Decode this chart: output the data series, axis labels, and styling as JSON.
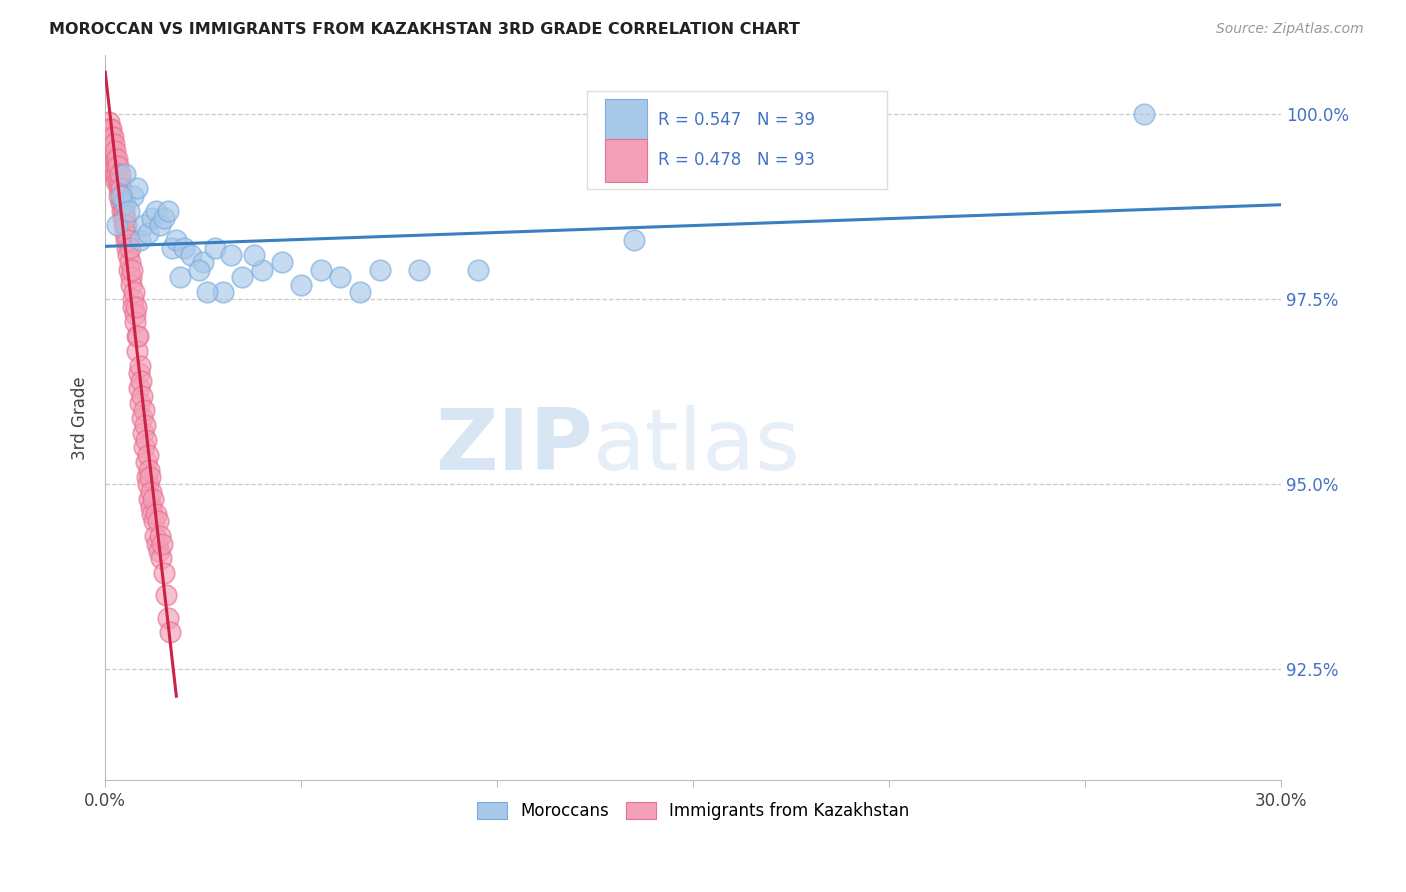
{
  "title": "MOROCCAN VS IMMIGRANTS FROM KAZAKHSTAN 3RD GRADE CORRELATION CHART",
  "source": "Source: ZipAtlas.com",
  "ylabel": "3rd Grade",
  "yticks": [
    100.0,
    97.5,
    95.0,
    92.5
  ],
  "ytick_labels": [
    "100.0%",
    "97.5%",
    "95.0%",
    "92.5%"
  ],
  "xmin": 0.0,
  "xmax": 30.0,
  "ymin": 91.0,
  "ymax": 100.8,
  "blue_color": "#a8c8e8",
  "pink_color": "#f4a0b8",
  "blue_edge_color": "#7aade0",
  "pink_edge_color": "#e87090",
  "blue_line_color": "#3a7fc1",
  "pink_line_color": "#cc2244",
  "legend_label_moroccans": "Moroccans",
  "legend_label_immigrants": "Immigrants from Kazakhstan",
  "watermark_zip": "ZIP",
  "watermark_atlas": "atlas",
  "blue_R": "0.547",
  "blue_N": "39",
  "pink_R": "0.478",
  "pink_N": "93",
  "blue_scatter_x": [
    0.3,
    0.5,
    0.5,
    0.7,
    0.8,
    0.9,
    1.0,
    1.1,
    1.2,
    1.3,
    1.4,
    1.5,
    1.6,
    1.7,
    1.8,
    2.0,
    2.2,
    2.5,
    2.8,
    3.0,
    3.2,
    3.5,
    4.0,
    4.5,
    5.0,
    5.5,
    6.0,
    6.5,
    7.0,
    8.0,
    9.5,
    13.5,
    26.5,
    0.4,
    0.6,
    1.9,
    2.4,
    2.6,
    3.8
  ],
  "blue_scatter_y": [
    98.5,
    99.2,
    98.8,
    98.9,
    99.0,
    98.3,
    98.5,
    98.4,
    98.6,
    98.7,
    98.5,
    98.6,
    98.7,
    98.2,
    98.3,
    98.2,
    98.1,
    98.0,
    98.2,
    97.6,
    98.1,
    97.8,
    97.9,
    98.0,
    97.7,
    97.9,
    97.8,
    97.6,
    97.9,
    97.9,
    97.9,
    98.3,
    100.0,
    98.9,
    98.7,
    97.8,
    97.9,
    97.6,
    98.1
  ],
  "pink_scatter_x": [
    0.05,
    0.08,
    0.1,
    0.1,
    0.12,
    0.12,
    0.14,
    0.15,
    0.15,
    0.17,
    0.18,
    0.2,
    0.2,
    0.22,
    0.24,
    0.25,
    0.25,
    0.27,
    0.28,
    0.3,
    0.3,
    0.32,
    0.33,
    0.35,
    0.35,
    0.37,
    0.38,
    0.4,
    0.4,
    0.42,
    0.43,
    0.45,
    0.45,
    0.47,
    0.48,
    0.5,
    0.5,
    0.52,
    0.53,
    0.55,
    0.57,
    0.58,
    0.6,
    0.62,
    0.63,
    0.65,
    0.67,
    0.68,
    0.7,
    0.72,
    0.73,
    0.75,
    0.77,
    0.78,
    0.8,
    0.82,
    0.83,
    0.85,
    0.87,
    0.88,
    0.9,
    0.92,
    0.93,
    0.95,
    0.97,
    0.98,
    1.0,
    1.02,
    1.03,
    1.05,
    1.07,
    1.08,
    1.1,
    1.12,
    1.13,
    1.15,
    1.17,
    1.18,
    1.2,
    1.22,
    1.25,
    1.28,
    1.3,
    1.33,
    1.35,
    1.38,
    1.4,
    1.43,
    1.45,
    1.5,
    1.55,
    1.6,
    1.65
  ],
  "pink_scatter_y": [
    99.8,
    99.6,
    99.9,
    99.7,
    99.8,
    99.5,
    99.7,
    99.8,
    99.6,
    99.5,
    99.4,
    99.7,
    99.3,
    99.6,
    99.4,
    99.5,
    99.2,
    99.3,
    99.1,
    99.4,
    99.2,
    99.1,
    99.3,
    99.0,
    98.9,
    99.1,
    99.2,
    98.8,
    99.0,
    98.7,
    98.9,
    98.6,
    98.8,
    98.5,
    98.7,
    98.4,
    98.6,
    98.3,
    98.5,
    98.2,
    98.1,
    98.3,
    97.9,
    98.0,
    98.2,
    97.8,
    97.7,
    97.9,
    97.5,
    97.4,
    97.6,
    97.3,
    97.2,
    97.4,
    97.0,
    96.8,
    97.0,
    96.5,
    96.3,
    96.6,
    96.1,
    96.4,
    95.9,
    96.2,
    95.7,
    96.0,
    95.5,
    95.8,
    95.3,
    95.6,
    95.1,
    95.4,
    95.0,
    95.2,
    94.8,
    95.1,
    94.7,
    94.9,
    94.6,
    94.8,
    94.5,
    94.3,
    94.6,
    94.2,
    94.5,
    94.1,
    94.3,
    94.0,
    94.2,
    93.8,
    93.5,
    93.2,
    93.0
  ]
}
